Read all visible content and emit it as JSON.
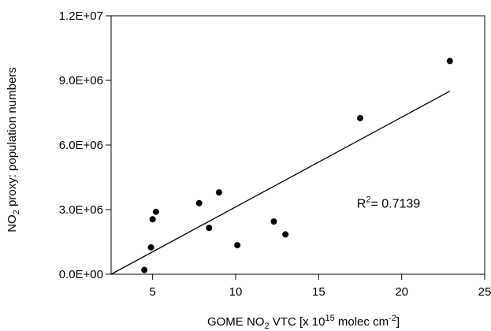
{
  "chart_data": {
    "type": "scatter",
    "xlabel": {
      "prefix": "GOME NO",
      "sub": "2",
      "mid": " VTC [x 10",
      "sup": "15",
      "unit": " molec cm",
      "unit_sup": "-2",
      "suffix": "]"
    },
    "ylabel": {
      "prefix": "NO",
      "sub": "2",
      "suffix": " proxy: population numbers"
    },
    "xlim": [
      2.5,
      25
    ],
    "ylim": [
      0,
      12000000
    ],
    "x_ticks": [
      5,
      10,
      15,
      20,
      25
    ],
    "x_tick_labels": [
      "5",
      "10",
      "15",
      "20",
      "25"
    ],
    "y_ticks": [
      0,
      3000000,
      6000000,
      9000000,
      12000000
    ],
    "y_tick_labels": [
      "0.0E+00",
      "3.0E+06",
      "6.0E+06",
      "9.0E+06",
      "1.2E+07"
    ],
    "grid": false,
    "series": [
      {
        "points": [
          {
            "x": 4.5,
            "y": 200000
          },
          {
            "x": 4.9,
            "y": 1250000
          },
          {
            "x": 5.0,
            "y": 2550000
          },
          {
            "x": 5.2,
            "y": 2900000
          },
          {
            "x": 7.8,
            "y": 3300000
          },
          {
            "x": 8.4,
            "y": 2150000
          },
          {
            "x": 9.0,
            "y": 3800000
          },
          {
            "x": 10.1,
            "y": 1350000
          },
          {
            "x": 12.3,
            "y": 2450000
          },
          {
            "x": 13.0,
            "y": 1850000
          },
          {
            "x": 17.5,
            "y": 7250000
          },
          {
            "x": 22.9,
            "y": 9900000
          }
        ],
        "color": "#000000"
      }
    ],
    "trendline": {
      "x1": 2.5,
      "y1": 0,
      "x2": 22.9,
      "y2": 8500000
    },
    "annotation": {
      "prefix": "R",
      "sup": "2",
      "suffix": "= 0.7139",
      "x": 17.3,
      "y": 3100000
    }
  }
}
